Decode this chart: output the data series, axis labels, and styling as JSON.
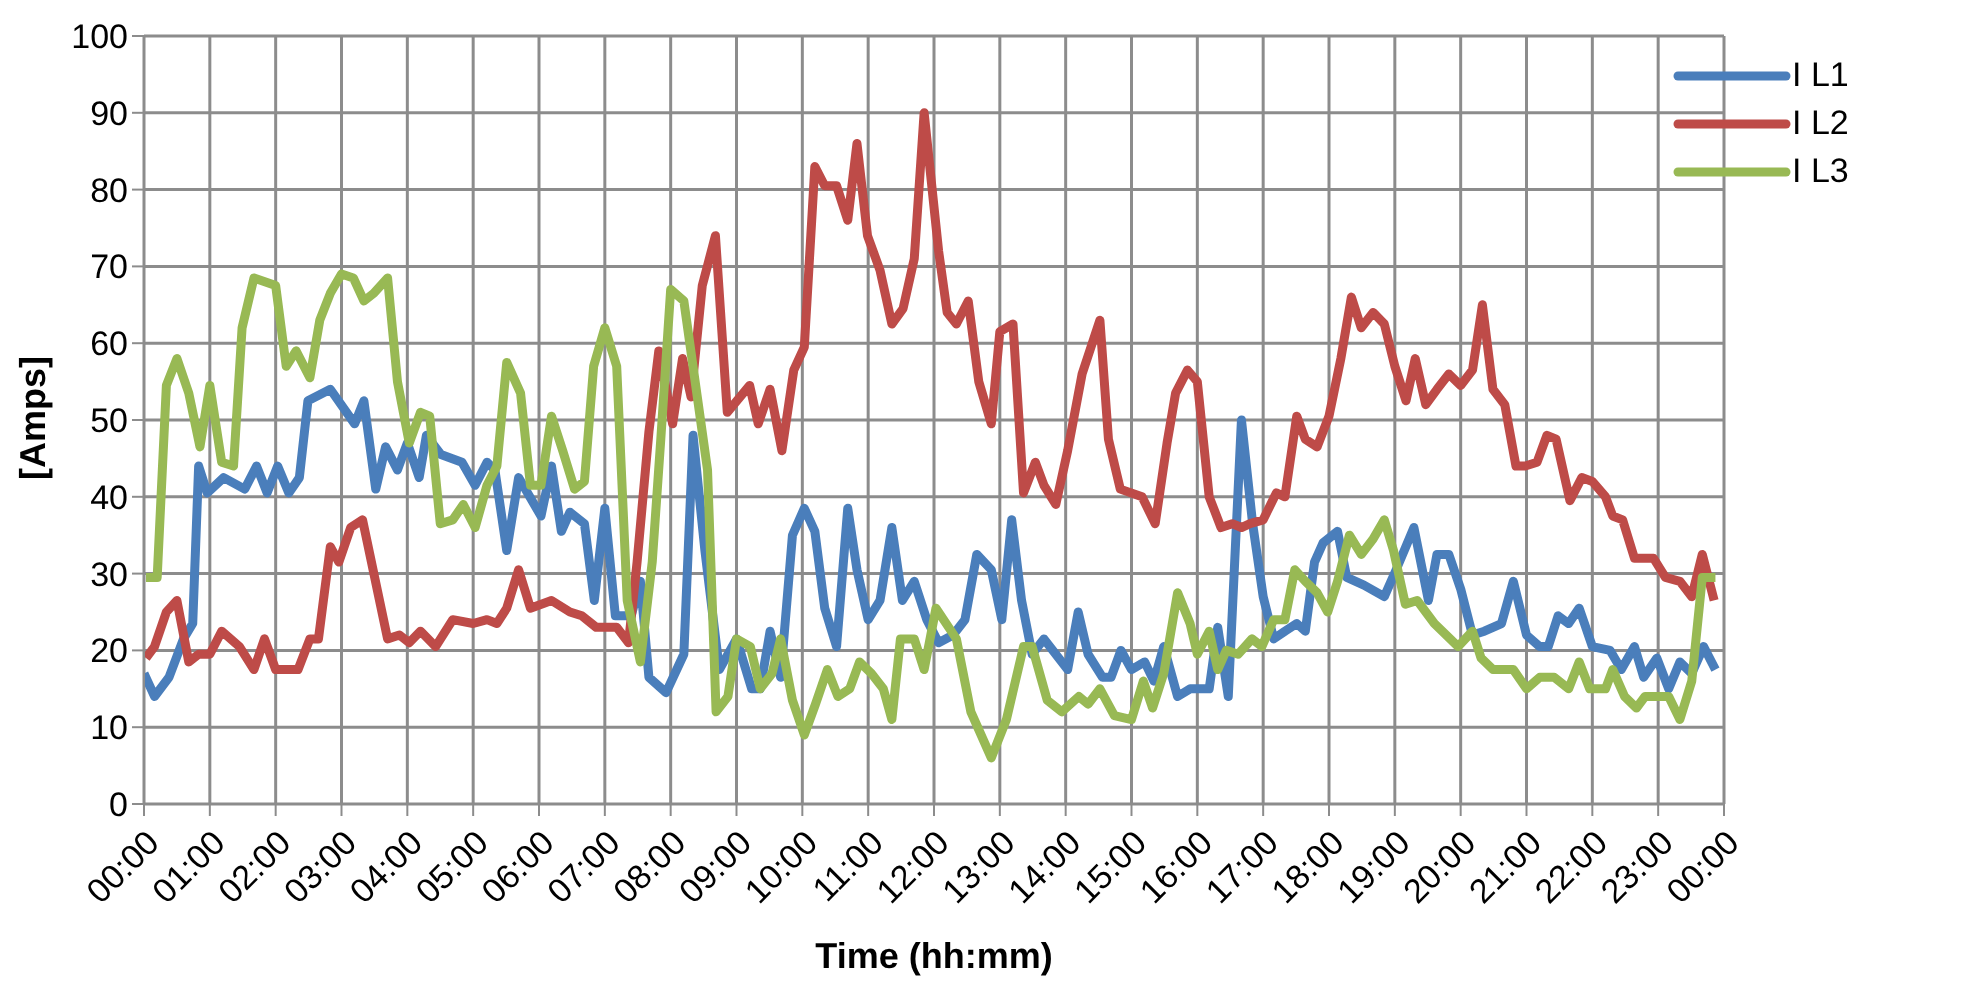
{
  "chart_data": {
    "type": "line",
    "xlabel": "Time (hh:mm)",
    "ylabel": "[Amps]",
    "xlim": [
      0,
      24
    ],
    "xticks": [
      {
        "value": 0,
        "label": "00:00"
      },
      {
        "value": 1,
        "label": "01:00"
      },
      {
        "value": 2,
        "label": "02:00"
      },
      {
        "value": 3,
        "label": "03:00"
      },
      {
        "value": 4,
        "label": "04:00"
      },
      {
        "value": 5,
        "label": "05:00"
      },
      {
        "value": 6,
        "label": "06:00"
      },
      {
        "value": 7,
        "label": "07:00"
      },
      {
        "value": 8,
        "label": "08:00"
      },
      {
        "value": 9,
        "label": "09:00"
      },
      {
        "value": 10,
        "label": "10:00"
      },
      {
        "value": 11,
        "label": "11:00"
      },
      {
        "value": 12,
        "label": "12:00"
      },
      {
        "value": 13,
        "label": "13:00"
      },
      {
        "value": 14,
        "label": "14:00"
      },
      {
        "value": 15,
        "label": "15:00"
      },
      {
        "value": 16,
        "label": "16:00"
      },
      {
        "value": 17,
        "label": "17:00"
      },
      {
        "value": 18,
        "label": "18:00"
      },
      {
        "value": 19,
        "label": "19:00"
      },
      {
        "value": 20,
        "label": "20:00"
      },
      {
        "value": 21,
        "label": "21:00"
      },
      {
        "value": 22,
        "label": "22:00"
      },
      {
        "value": 23,
        "label": "23:00"
      },
      {
        "value": 24,
        "label": "00:00"
      }
    ],
    "ylim": [
      0,
      100
    ],
    "yticks": [
      0,
      10,
      20,
      30,
      40,
      50,
      60,
      70,
      80,
      90,
      100
    ],
    "grid": true,
    "legend": "top right",
    "marker": "none",
    "line_style": "solid",
    "series": [
      {
        "name": "I L1",
        "color": "#4a7ebb",
        "x": [
          0.0,
          0.16,
          0.38,
          0.6,
          0.74,
          0.83,
          0.96,
          1.21,
          1.53,
          1.71,
          1.87,
          2.03,
          2.2,
          2.36,
          2.49,
          2.83,
          3.2,
          3.34,
          3.52,
          3.67,
          3.85,
          4.0,
          4.18,
          4.29,
          4.51,
          4.83,
          5.03,
          5.21,
          5.33,
          5.51,
          5.69,
          6.03,
          6.19,
          6.34,
          6.47,
          6.69,
          6.84,
          7.0,
          7.16,
          7.4,
          7.54,
          7.67,
          7.93,
          8.2,
          8.34,
          8.52,
          8.74,
          9.0,
          9.23,
          9.36,
          9.51,
          9.67,
          9.85,
          10.03,
          10.19,
          10.34,
          10.52,
          10.69,
          10.83,
          11.0,
          11.18,
          11.36,
          11.52,
          11.7,
          11.89,
          12.07,
          12.29,
          12.47,
          12.65,
          12.87,
          13.03,
          13.18,
          13.33,
          13.49,
          13.67,
          14.03,
          14.19,
          14.34,
          14.56,
          14.69,
          14.84,
          15.0,
          15.2,
          15.34,
          15.49,
          15.7,
          15.89,
          16.18,
          16.31,
          16.47,
          16.67,
          16.84,
          17.0,
          17.16,
          17.33,
          17.51,
          17.64,
          17.78,
          17.91,
          18.13,
          18.27,
          18.53,
          18.84,
          19.02,
          19.29,
          19.51,
          19.64,
          19.82,
          20.0,
          20.18,
          20.36,
          20.62,
          20.8,
          21.0,
          21.2,
          21.33,
          21.48,
          21.64,
          21.8,
          22.0,
          22.27,
          22.44,
          22.64,
          22.78,
          22.98,
          23.16,
          23.33,
          23.51,
          23.69,
          23.87
        ],
        "values": [
          17,
          14,
          16.5,
          21.5,
          23.5,
          44,
          40.5,
          42.5,
          41,
          44,
          40.5,
          44,
          40.5,
          42.5,
          52.5,
          54,
          49.5,
          52.5,
          41,
          46.5,
          43.5,
          47,
          42.5,
          48,
          45.5,
          44.5,
          41.5,
          44.5,
          43.5,
          33,
          42.5,
          37.5,
          44,
          35.5,
          38,
          36.5,
          26.5,
          38.5,
          24.5,
          24.5,
          29,
          16.5,
          14.5,
          19.5,
          48,
          33,
          17.5,
          21.5,
          15,
          15,
          22.5,
          16.5,
          35,
          38.5,
          35.5,
          25.5,
          20.5,
          38.5,
          30.5,
          24,
          26.5,
          36,
          26.5,
          29,
          24,
          21,
          22,
          24,
          32.5,
          30.5,
          24,
          37,
          26.5,
          19.5,
          21.5,
          17.5,
          25,
          19.5,
          16.5,
          16.5,
          20,
          17.5,
          18.5,
          16,
          20.5,
          14,
          15,
          15,
          23,
          14,
          50,
          36.5,
          27,
          21.5,
          22.5,
          23.5,
          22.5,
          31.5,
          34,
          35.5,
          29.5,
          28.5,
          27,
          30.5,
          36,
          26.5,
          32.5,
          32.5,
          28,
          22,
          22.5,
          23.5,
          29,
          22,
          20.5,
          20.5,
          24.5,
          23.5,
          25.5,
          20.5,
          20,
          17.5,
          20.5,
          16.5,
          19,
          15,
          18.5,
          17,
          20.5,
          17.5
        ]
      },
      {
        "name": "I L2",
        "color": "#be4b48",
        "x": [
          0.03,
          0.16,
          0.34,
          0.5,
          0.68,
          0.83,
          1.0,
          1.18,
          1.45,
          1.67,
          1.83,
          2.0,
          2.34,
          2.52,
          2.65,
          2.83,
          2.96,
          3.14,
          3.32,
          3.7,
          3.88,
          4.03,
          4.2,
          4.43,
          4.69,
          5.0,
          5.21,
          5.36,
          5.51,
          5.69,
          5.87,
          6.19,
          6.47,
          6.65,
          6.87,
          7.18,
          7.36,
          7.49,
          7.67,
          7.82,
          8.03,
          8.18,
          8.31,
          8.48,
          8.68,
          8.86,
          9.2,
          9.33,
          9.51,
          9.69,
          9.87,
          10.03,
          10.19,
          10.34,
          10.52,
          10.69,
          10.83,
          10.99,
          11.18,
          11.36,
          11.53,
          11.7,
          11.85,
          12.07,
          12.2,
          12.34,
          12.52,
          12.68,
          12.87,
          13.0,
          13.2,
          13.36,
          13.54,
          13.67,
          13.85,
          14.03,
          14.25,
          14.52,
          14.65,
          14.83,
          15.16,
          15.36,
          15.54,
          15.67,
          15.85,
          16.0,
          16.18,
          16.36,
          16.53,
          16.67,
          16.8,
          17.0,
          17.2,
          17.33,
          17.51,
          17.64,
          17.82,
          18.0,
          18.18,
          18.34,
          18.49,
          18.67,
          18.84,
          19.0,
          19.17,
          19.31,
          19.47,
          19.64,
          19.82,
          20.0,
          20.18,
          20.33,
          20.49,
          20.67,
          20.84,
          20.98,
          21.16,
          21.31,
          21.45,
          21.66,
          21.84,
          22.0,
          22.2,
          22.31,
          22.46,
          22.64,
          22.93,
          23.11,
          23.33,
          23.51,
          23.67,
          23.85
        ],
        "values": [
          19,
          20.5,
          25,
          26.5,
          18.5,
          19.5,
          19.5,
          22.5,
          20.5,
          17.5,
          21.5,
          17.5,
          17.5,
          21.5,
          21.5,
          33.5,
          31.5,
          36,
          37,
          21.5,
          22,
          21,
          22.5,
          20.5,
          24,
          23.5,
          24,
          23.5,
          25.5,
          30.5,
          25.5,
          26.5,
          25,
          24.5,
          23,
          23,
          21,
          31.5,
          48.5,
          59,
          49.5,
          58,
          53,
          67.5,
          74,
          51,
          54.5,
          49.5,
          54,
          46,
          56.5,
          59.5,
          83,
          80.5,
          80.5,
          76,
          86,
          74,
          69.5,
          62.5,
          64.5,
          71,
          90,
          72,
          64,
          62.5,
          65.5,
          55,
          49.5,
          61.5,
          62.5,
          40.5,
          44.5,
          41.5,
          39,
          46,
          56,
          63,
          47.5,
          41,
          40,
          36.5,
          47,
          53.5,
          56.5,
          55,
          40,
          36,
          36.5,
          36,
          36.5,
          37,
          40.5,
          40,
          50.5,
          47.5,
          46.5,
          50.5,
          58,
          66,
          62,
          64,
          62.5,
          57,
          52.5,
          58,
          52,
          54,
          56,
          54.5,
          56.5,
          65,
          54,
          52,
          44,
          44,
          44.5,
          48,
          47.5,
          39.5,
          42.5,
          42,
          40,
          37.5,
          37,
          32,
          32,
          29.5,
          29,
          27,
          32.5,
          26.5
        ]
      },
      {
        "name": "I L3",
        "color": "#98b954",
        "x": [
          0.03,
          0.2,
          0.34,
          0.5,
          0.68,
          0.85,
          1.0,
          1.18,
          1.36,
          1.49,
          1.67,
          2.0,
          2.16,
          2.31,
          2.52,
          2.67,
          2.83,
          3.0,
          3.18,
          3.34,
          3.49,
          3.7,
          3.85,
          4.03,
          4.2,
          4.34,
          4.5,
          4.69,
          4.85,
          5.03,
          5.21,
          5.36,
          5.51,
          5.72,
          5.87,
          6.03,
          6.19,
          6.36,
          6.54,
          6.69,
          6.83,
          7.0,
          7.18,
          7.34,
          7.54,
          7.72,
          7.85,
          8.0,
          8.2,
          8.56,
          8.69,
          8.87,
          9.0,
          9.21,
          9.36,
          9.54,
          9.67,
          9.85,
          10.03,
          10.2,
          10.38,
          10.54,
          10.72,
          10.87,
          11.05,
          11.23,
          11.36,
          11.49,
          11.7,
          11.85,
          12.03,
          12.34,
          12.56,
          12.87,
          13.1,
          13.36,
          13.49,
          13.72,
          13.94,
          14.2,
          14.34,
          14.52,
          14.74,
          15.0,
          15.18,
          15.32,
          15.49,
          15.7,
          15.89,
          16.0,
          16.18,
          16.31,
          16.44,
          16.62,
          16.83,
          16.98,
          17.16,
          17.33,
          17.48,
          17.64,
          17.82,
          17.98,
          18.13,
          18.31,
          18.49,
          18.67,
          18.84,
          18.98,
          19.16,
          19.34,
          19.6,
          19.96,
          20.18,
          20.31,
          20.49,
          20.8,
          21.0,
          21.2,
          21.42,
          21.64,
          21.8,
          21.96,
          22.2,
          22.31,
          22.49,
          22.67,
          22.8,
          23.16,
          23.33,
          23.51,
          23.67,
          23.87
        ],
        "values": [
          29.5,
          29.5,
          54.5,
          58,
          53.5,
          46.5,
          54.5,
          44.5,
          44,
          62,
          68.5,
          67.5,
          57,
          59,
          55.5,
          63,
          66.5,
          69,
          68.5,
          65.5,
          66.5,
          68.5,
          55,
          47,
          51,
          50.5,
          36.5,
          37,
          39,
          36,
          41.5,
          44,
          57.5,
          53.5,
          41.5,
          41.5,
          50.5,
          46,
          41,
          42,
          57,
          62,
          57,
          26.5,
          18.5,
          31.5,
          47.5,
          67,
          65.5,
          43.5,
          12,
          14,
          21.5,
          20.5,
          15,
          17,
          21.5,
          13.5,
          9,
          13,
          17.5,
          14,
          15,
          18.5,
          17,
          15,
          11,
          21.5,
          21.5,
          17.5,
          25.5,
          21.5,
          12,
          6,
          11,
          20.5,
          20.5,
          13.5,
          12,
          14,
          13,
          15,
          11.5,
          11,
          16,
          12.5,
          17,
          27.5,
          23.5,
          19.5,
          22.5,
          17.5,
          20,
          19.5,
          21.5,
          20.5,
          24,
          24,
          30.5,
          29,
          27.5,
          25,
          29,
          35,
          32.5,
          34.5,
          37,
          33,
          26,
          26.5,
          23.5,
          20.5,
          22.5,
          19,
          17.5,
          17.5,
          15,
          16.5,
          16.5,
          15,
          18.5,
          15,
          15,
          17.5,
          14,
          12.5,
          14,
          14,
          11,
          16,
          29.5,
          29.5
        ]
      }
    ]
  }
}
